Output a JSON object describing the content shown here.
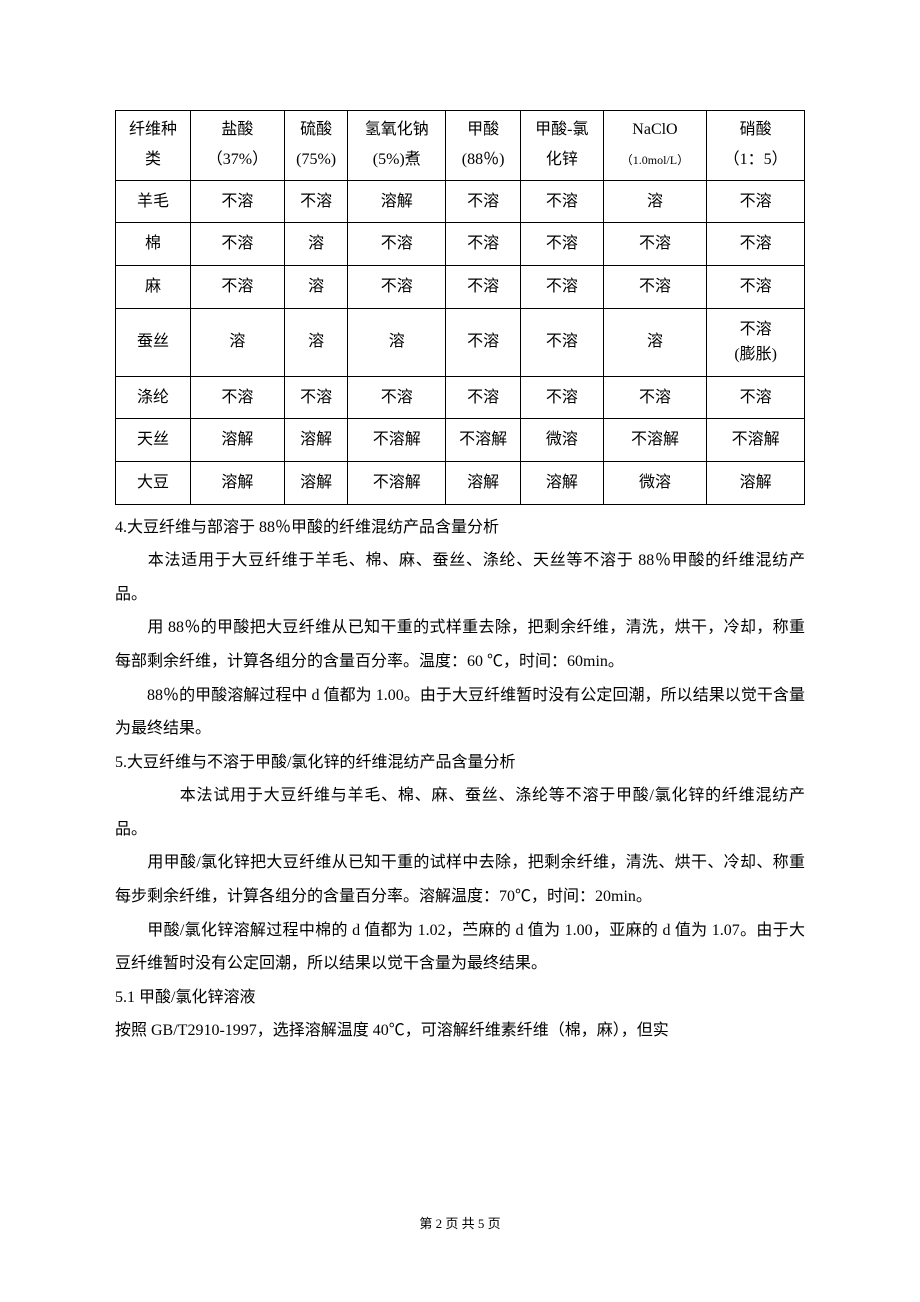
{
  "table": {
    "columns": [
      {
        "line1": "纤维种",
        "line2": "类"
      },
      {
        "line1": "盐酸",
        "line2": "（37%）"
      },
      {
        "line1": "硫酸",
        "line2": "(75%)"
      },
      {
        "line1": "氢氧化钠",
        "line2": "(5%)煮"
      },
      {
        "line1": "甲酸",
        "line2": "(88％)"
      },
      {
        "line1": "甲酸-氯",
        "line2": "化锌"
      },
      {
        "line1": "NaClO",
        "line2": "（1.0mol/L）",
        "line2_small": true
      },
      {
        "line1": "硝酸",
        "line2": "（1：5）"
      }
    ],
    "rows": [
      {
        "cells": [
          "羊毛",
          "不溶",
          "不溶",
          "溶解",
          "不溶",
          "不溶",
          "溶",
          "不溶"
        ]
      },
      {
        "cells": [
          "棉",
          "不溶",
          "溶",
          "不溶",
          "不溶",
          "不溶",
          "不溶",
          "不溶"
        ]
      },
      {
        "cells": [
          "麻",
          "不溶",
          "溶",
          "不溶",
          "不溶",
          "不溶",
          "不溶",
          "不溶"
        ]
      },
      {
        "cells": [
          "蚕丝",
          "溶",
          "溶",
          "溶",
          "不溶",
          "不溶",
          "溶",
          {
            "line1": "不溶",
            "line2": "(膨胀)"
          }
        ]
      },
      {
        "cells": [
          "涤纶",
          "不溶",
          "不溶",
          "不溶",
          "不溶",
          "不溶",
          "不溶",
          "不溶"
        ]
      },
      {
        "cells": [
          "天丝",
          "溶解",
          "溶解",
          "不溶解",
          "不溶解",
          "微溶",
          "不溶解",
          "不溶解"
        ]
      },
      {
        "cells": [
          "大豆",
          "溶解",
          "溶解",
          "不溶解",
          "溶解",
          "溶解",
          "微溶",
          "溶解"
        ]
      }
    ]
  },
  "paragraphs": {
    "p4_title": "4.大豆纤维与部溶于 88％甲酸的纤维混纺产品含量分析",
    "p4_1": "本法适用于大豆纤维于羊毛、棉、麻、蚕丝、涤纶、天丝等不溶于 88％甲酸的纤维混纺产品。",
    "p4_2": "用 88％的甲酸把大豆纤维从已知干重的式样重去除，把剩余纤维，清洗，烘干，冷却，称重每部剩余纤维，计算各组分的含量百分率。温度：60 ℃，时间：60min。",
    "p4_3": "88％的甲酸溶解过程中 d 值都为 1.00。由于大豆纤维暂时没有公定回潮，所以结果以觉干含量为最终结果。",
    "p5_title": "5.大豆纤维与不溶于甲酸/氯化锌的纤维混纺产品含量分析",
    "p5_1": "本法试用于大豆纤维与羊毛、棉、麻、蚕丝、涤纶等不溶于甲酸/氯化锌的纤维混纺产品。",
    "p5_2": "用甲酸/氯化锌把大豆纤维从已知干重的试样中去除，把剩余纤维，清洗、烘干、冷却、称重每步剩余纤维，计算各组分的含量百分率。溶解温度：70℃，时间：20min。",
    "p5_3": "甲酸/氯化锌溶解过程中棉的 d 值都为 1.02，苎麻的 d 值为 1.00，亚麻的 d 值为 1.07。由于大豆纤维暂时没有公定回潮，所以结果以觉干含量为最终结果。",
    "p51_title": "5.1 甲酸/氯化锌溶液",
    "p51_1": "按照 GB/T2910-1997，选择溶解温度 40℃，可溶解纤维素纤维（棉，麻），但实"
  },
  "footer": "第 2 页 共 5 页"
}
